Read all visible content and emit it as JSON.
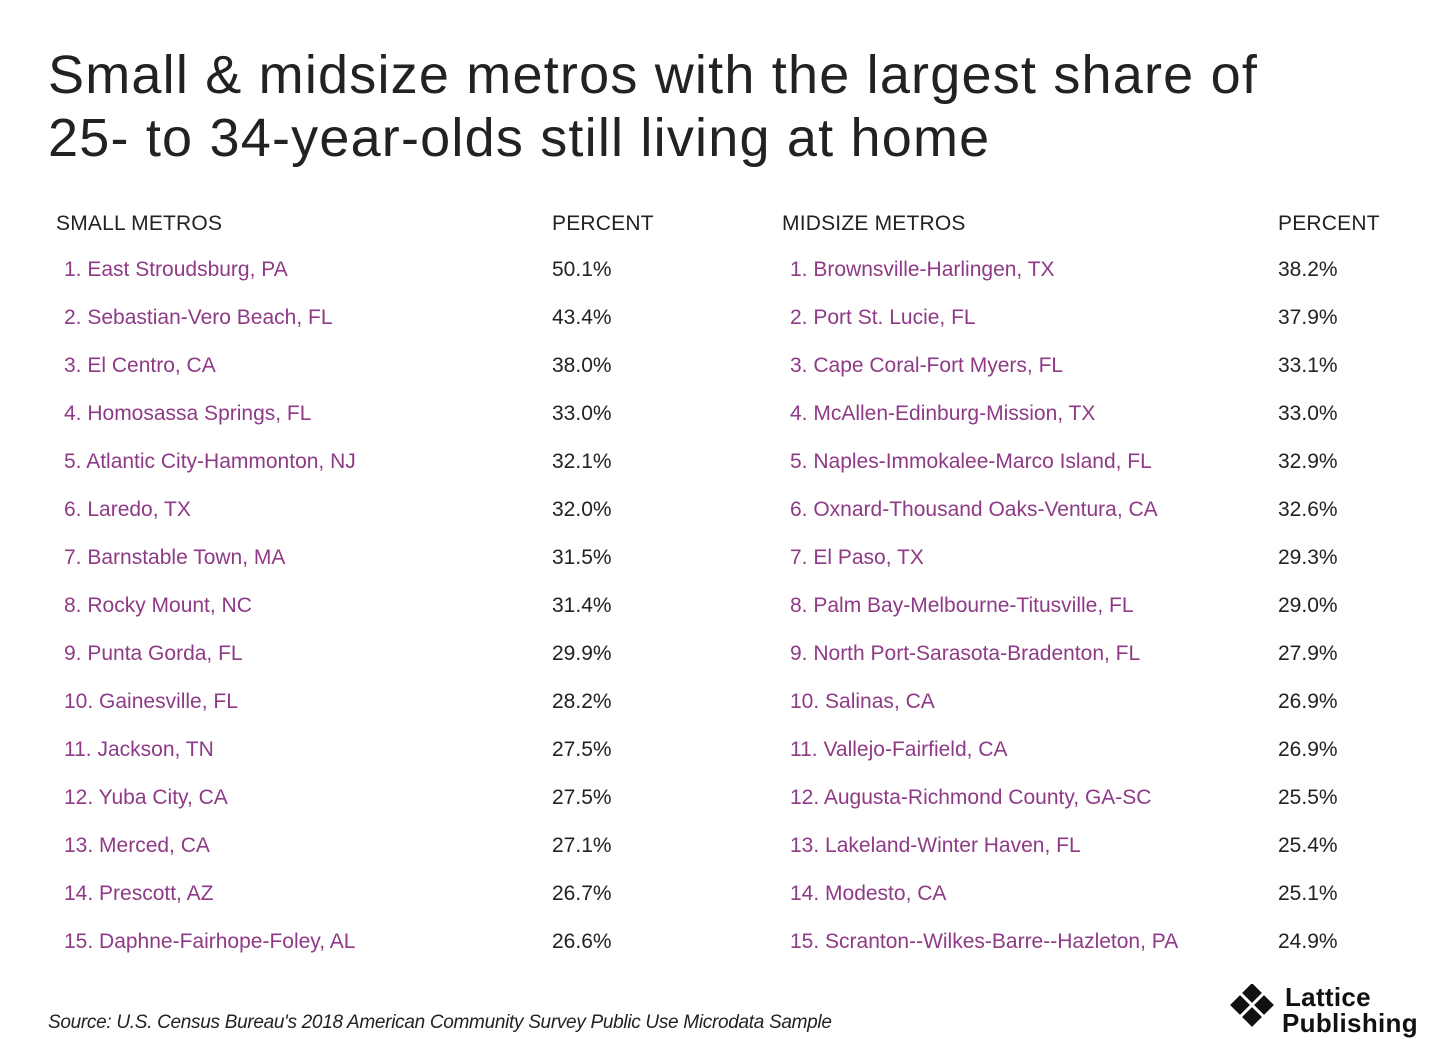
{
  "title_lines": [
    "Small & midsize metros with the largest share of",
    "25- to 34-year-olds still living at home"
  ],
  "chart_data": {
    "type": "table",
    "tables": [
      {
        "name_header": "SMALL METROS",
        "value_header": "PERCENT",
        "rows": [
          {
            "name": "1. East Stroudsburg, PA",
            "value": "50.1%"
          },
          {
            "name": "2. Sebastian-Vero Beach, FL",
            "value": "43.4%"
          },
          {
            "name": "3. El Centro, CA",
            "value": "38.0%"
          },
          {
            "name": "4. Homosassa Springs, FL",
            "value": "33.0%"
          },
          {
            "name": "5. Atlantic City-Hammonton, NJ",
            "value": "32.1%"
          },
          {
            "name": "6. Laredo, TX",
            "value": "32.0%"
          },
          {
            "name": "7. Barnstable Town, MA",
            "value": "31.5%"
          },
          {
            "name": "8. Rocky Mount, NC",
            "value": "31.4%"
          },
          {
            "name": "9. Punta Gorda, FL",
            "value": "29.9%"
          },
          {
            "name": "10. Gainesville, FL",
            "value": "28.2%"
          },
          {
            "name": "11. Jackson, TN",
            "value": "27.5%"
          },
          {
            "name": "12. Yuba City, CA",
            "value": "27.5%"
          },
          {
            "name": "13. Merced, CA",
            "value": "27.1%"
          },
          {
            "name": "14. Prescott, AZ",
            "value": "26.7%"
          },
          {
            "name": "15. Daphne-Fairhope-Foley, AL",
            "value": "26.6%"
          }
        ]
      },
      {
        "name_header": "MIDSIZE METROS",
        "value_header": "PERCENT",
        "rows": [
          {
            "name": "1. Brownsville-Harlingen, TX",
            "value": "38.2%"
          },
          {
            "name": "2. Port St. Lucie, FL",
            "value": "37.9%"
          },
          {
            "name": "3. Cape Coral-Fort Myers, FL",
            "value": "33.1%"
          },
          {
            "name": "4. McAllen-Edinburg-Mission, TX",
            "value": "33.0%"
          },
          {
            "name": "5. Naples-Immokalee-Marco Island, FL",
            "value": "32.9%"
          },
          {
            "name": "6. Oxnard-Thousand Oaks-Ventura, CA",
            "value": "32.6%"
          },
          {
            "name": "7. El Paso, TX",
            "value": "29.3%"
          },
          {
            "name": "8. Palm Bay-Melbourne-Titusville, FL",
            "value": "29.0%"
          },
          {
            "name": "9. North Port-Sarasota-Bradenton, FL",
            "value": "27.9%"
          },
          {
            "name": "10. Salinas, CA",
            "value": "26.9%"
          },
          {
            "name": "11. Vallejo-Fairfield, CA",
            "value": "26.9%"
          },
          {
            "name": "12. Augusta-Richmond County, GA-SC",
            "value": "25.5%"
          },
          {
            "name": "13. Lakeland-Winter Haven, FL",
            "value": "25.4%"
          },
          {
            "name": "14. Modesto, CA",
            "value": "25.1%"
          },
          {
            "name": "15. Scranton--Wilkes-Barre--Hazleton, PA",
            "value": "24.9%"
          }
        ]
      }
    ]
  },
  "source": "Source: U.S. Census Bureau's 2018 American Community Survey Public Use Microdata Sample",
  "logo": {
    "line1": "Lattice",
    "line2": "Publishing",
    "icon": "diamond-cluster-icon"
  },
  "colors": {
    "metro_name": "#8e3a86",
    "text": "#222222",
    "logo": "#111111"
  }
}
